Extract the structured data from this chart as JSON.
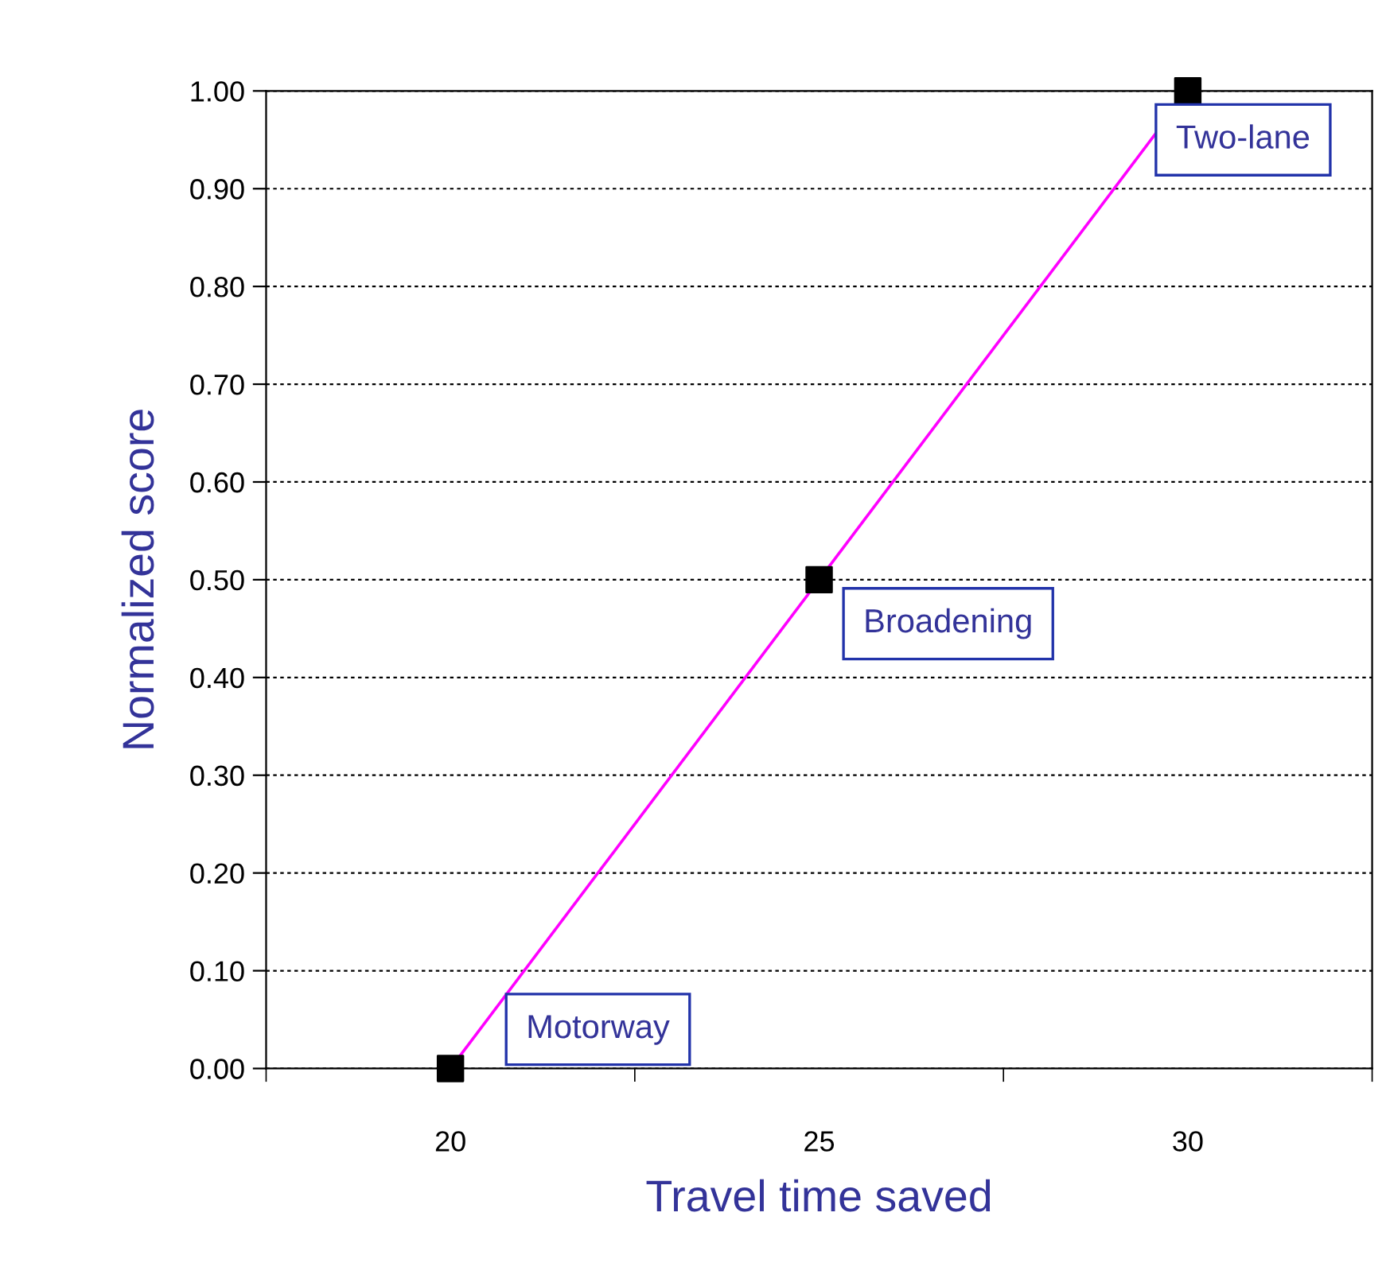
{
  "chart_data": {
    "type": "line",
    "xlabel": "Travel time saved",
    "ylabel": "Normalized score",
    "categories": [
      "20",
      "25",
      "30"
    ],
    "series": [
      {
        "color": "#ff00ff",
        "colors": [
          "#000000",
          "#000000",
          "#000000"
        ],
        "values": [
          0.0,
          0.5,
          1.0
        ]
      }
    ],
    "ylim": [
      0,
      1
    ],
    "yticks": [
      {
        "value": 0,
        "label": "0.00"
      },
      {
        "value": 0.1,
        "label": "0.10"
      },
      {
        "value": 0.2,
        "label": "0.20"
      },
      {
        "value": 0.3,
        "label": "0.30"
      },
      {
        "value": 0.4,
        "label": "0.40"
      },
      {
        "value": 0.5,
        "label": "0.50"
      },
      {
        "value": 0.6,
        "label": "0.60"
      },
      {
        "value": 0.7,
        "label": "0.70"
      },
      {
        "value": 0.8,
        "label": "0.80"
      },
      {
        "value": 0.9,
        "label": "0.90"
      },
      {
        "value": 1,
        "label": "1.00"
      }
    ],
    "grid": "y",
    "marker": "square",
    "line_style": "solid",
    "legend": false,
    "annotations": [
      {
        "text": "Motorway",
        "x": "20",
        "y": 0.0
      },
      {
        "text": "Broadening",
        "x": "25",
        "y": 0.5
      },
      {
        "text": "Two-lane",
        "x": "30",
        "y": 1.0
      }
    ]
  }
}
